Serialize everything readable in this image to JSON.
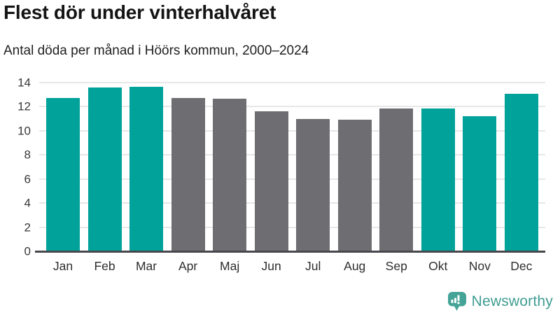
{
  "chart_data": {
    "type": "bar",
    "title": "Flest dör under vinterhalvåret",
    "subtitle": "Antal döda per månad i Höörs kommun, 2000–2024",
    "categories": [
      "Jan",
      "Feb",
      "Mar",
      "Apr",
      "Maj",
      "Jun",
      "Jul",
      "Aug",
      "Sep",
      "Okt",
      "Nov",
      "Dec"
    ],
    "values": [
      12.7,
      13.6,
      13.65,
      12.75,
      12.65,
      11.6,
      11.0,
      10.9,
      11.85,
      11.85,
      11.2,
      13.05
    ],
    "highlighted": [
      true,
      true,
      true,
      false,
      false,
      false,
      false,
      false,
      false,
      true,
      true,
      true
    ],
    "colors": {
      "highlight": "#00a29a",
      "default": "#6e6d72",
      "gridline": "#e7e7e7",
      "axis_line": "#47474c"
    },
    "xlabel": "",
    "ylabel": "",
    "ylim": [
      0,
      14
    ],
    "yticks": [
      0,
      2,
      4,
      6,
      8,
      10,
      12,
      14
    ],
    "grid": "horizontal",
    "legend": "none"
  },
  "brand": {
    "name": "Newsworthy",
    "color": "#3f9d93",
    "logo_color": "#46a397",
    "logo_icon": "bar-chart-speech-bubble-icon"
  }
}
